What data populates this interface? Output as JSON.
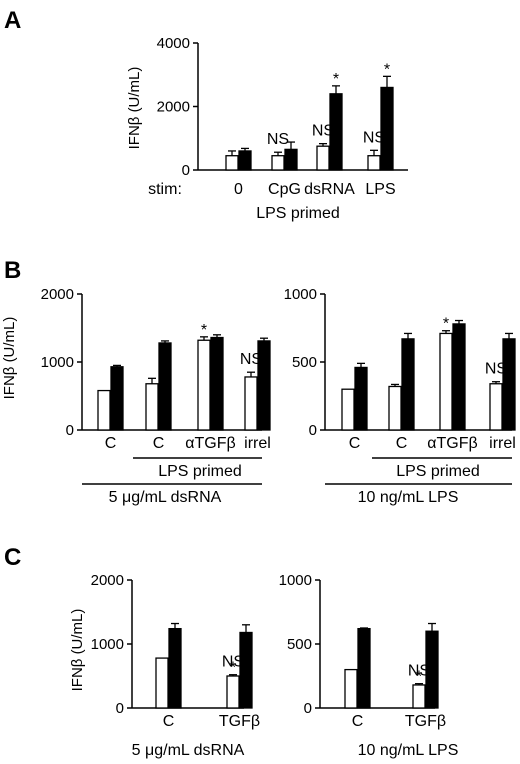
{
  "panels": [
    {
      "letter": "A",
      "ylabel": "IFNβ (U/mL)"
    },
    {
      "letter": "B",
      "ylabel": "IFNβ (U/mL)"
    },
    {
      "letter": "C",
      "ylabel": "IFNβ (U/mL)"
    }
  ],
  "chart_data": [
    {
      "id": "A",
      "type": "bar",
      "title": "",
      "ylabel": "IFNβ (U/mL)",
      "ylim": [
        0,
        4000
      ],
      "yticks": [
        0,
        2000,
        4000
      ],
      "categories": [
        "0",
        "CpG",
        "dsRNA",
        "LPS"
      ],
      "category_prefix": "stim:",
      "group_caption": "LPS primed",
      "series": [
        {
          "fill": "#ffffff",
          "values": [
            450,
            450,
            750,
            450
          ],
          "errors": [
            150,
            110,
            80,
            170
          ]
        },
        {
          "fill": "#000000",
          "values": [
            600,
            650,
            2400,
            2600
          ],
          "errors": [
            80,
            230,
            250,
            350
          ]
        }
      ],
      "annotations": [
        {
          "category": 1,
          "text": "NS"
        },
        {
          "category": 2,
          "text": "NS"
        },
        {
          "category": 3,
          "text": "NS"
        }
      ],
      "stars": [
        {
          "category": 2,
          "series": 1,
          "text": "*"
        },
        {
          "category": 3,
          "series": 1,
          "text": "*"
        }
      ]
    },
    {
      "id": "B-left",
      "type": "bar",
      "title": "",
      "ylabel": "IFNβ (U/mL)",
      "ylim": [
        0,
        2000
      ],
      "yticks": [
        0,
        1000,
        2000
      ],
      "categories": [
        "C",
        "C",
        "αTGFβ",
        "irrel"
      ],
      "primed_label": "LPS primed",
      "stim_label": "5 μg/mL dsRNA",
      "series": [
        {
          "fill": "#ffffff",
          "values": [
            580,
            680,
            1320,
            780
          ],
          "errors": [
            0,
            80,
            50,
            70
          ]
        },
        {
          "fill": "#000000",
          "values": [
            930,
            1280,
            1360,
            1310
          ],
          "errors": [
            20,
            30,
            40,
            40
          ]
        }
      ],
      "annotations": [
        {
          "category": 3,
          "text": "NS"
        }
      ],
      "stars": [
        {
          "category": 2,
          "series": 0,
          "text": "*"
        }
      ]
    },
    {
      "id": "B-right",
      "type": "bar",
      "title": "",
      "ylabel": "",
      "ylim": [
        0,
        1000
      ],
      "yticks": [
        0,
        500,
        1000
      ],
      "categories": [
        "C",
        "C",
        "αTGFβ",
        "irrel"
      ],
      "primed_label": "LPS primed",
      "stim_label": "10 ng/mL LPS",
      "series": [
        {
          "fill": "#ffffff",
          "values": [
            300,
            320,
            710,
            340
          ],
          "errors": [
            0,
            15,
            20,
            15
          ]
        },
        {
          "fill": "#000000",
          "values": [
            460,
            670,
            780,
            670
          ],
          "errors": [
            30,
            40,
            25,
            40
          ]
        }
      ],
      "annotations": [
        {
          "category": 3,
          "text": "NS"
        }
      ],
      "stars": [
        {
          "category": 2,
          "series": 0,
          "text": "*"
        }
      ]
    },
    {
      "id": "C-left",
      "type": "bar",
      "title": "",
      "ylabel": "IFNβ (U/mL)",
      "ylim": [
        0,
        2000
      ],
      "yticks": [
        0,
        1000,
        2000
      ],
      "categories": [
        "C",
        "TGFβ"
      ],
      "stim_label": "5 μg/mL dsRNA",
      "series": [
        {
          "fill": "#ffffff",
          "values": [
            780,
            500
          ],
          "errors": [
            0,
            20
          ]
        },
        {
          "fill": "#000000",
          "values": [
            1240,
            1180
          ],
          "errors": [
            80,
            120
          ]
        }
      ],
      "annotations": [
        {
          "category": 1,
          "text": "NS"
        }
      ],
      "stars": [
        {
          "category": 1,
          "series": 0,
          "text": "*"
        }
      ]
    },
    {
      "id": "C-right",
      "type": "bar",
      "title": "",
      "ylabel": "",
      "ylim": [
        0,
        1000
      ],
      "yticks": [
        0,
        500,
        1000
      ],
      "categories": [
        "C",
        "TGFβ"
      ],
      "stim_label": "10 ng/mL LPS",
      "series": [
        {
          "fill": "#ffffff",
          "values": [
            300,
            180
          ],
          "errors": [
            0,
            10
          ]
        },
        {
          "fill": "#000000",
          "values": [
            620,
            600
          ],
          "errors": [
            5,
            60
          ]
        }
      ],
      "annotations": [
        {
          "category": 1,
          "text": "NS"
        }
      ],
      "stars": [
        {
          "category": 1,
          "series": 0,
          "text": "*"
        }
      ]
    }
  ]
}
